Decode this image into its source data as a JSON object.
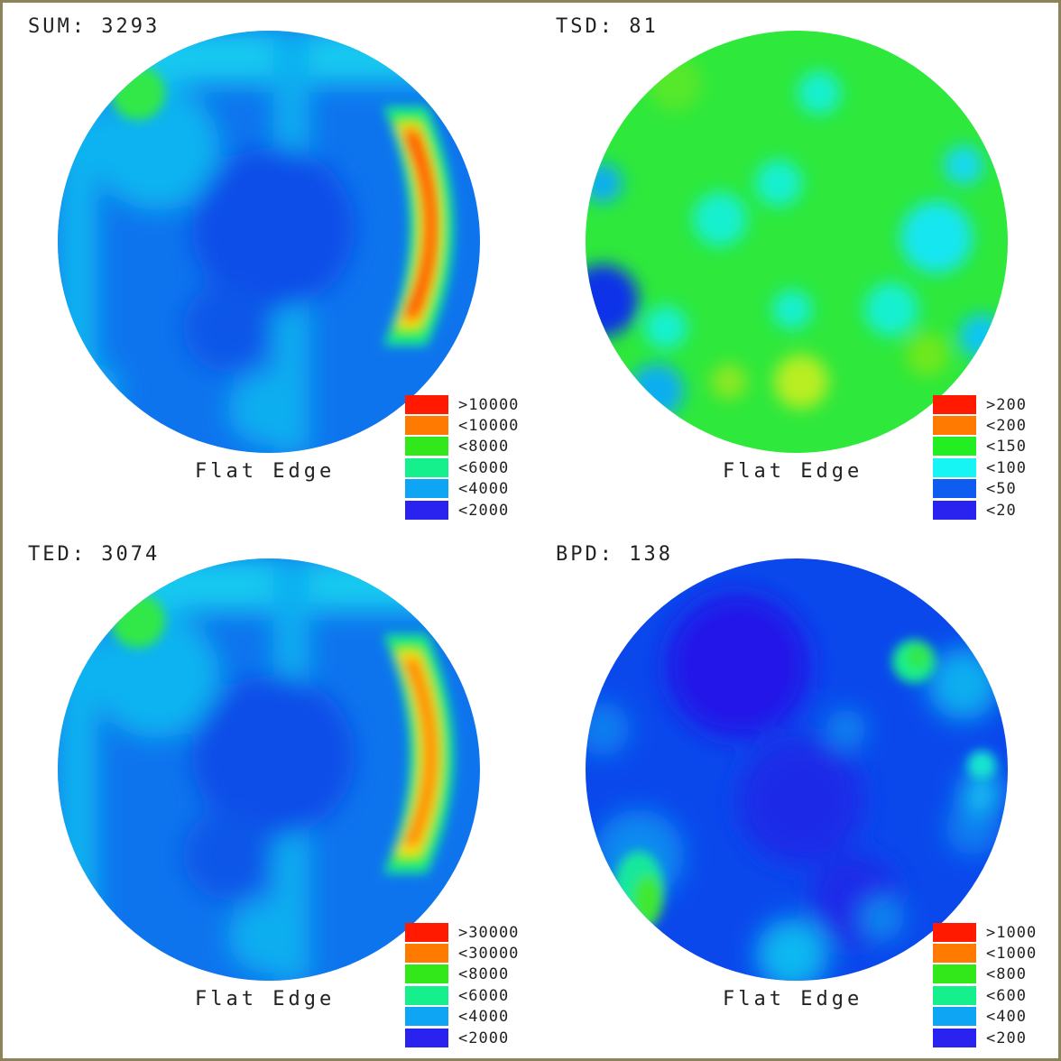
{
  "legend_colors": [
    "#ff1a00",
    "#ff7a00",
    "#33e81a",
    "#16f08c",
    "#0ea6f4",
    "#2a22ee"
  ],
  "chart_data": [
    {
      "type": "heatmap",
      "title": "SUM: 3293",
      "xlabel": "Flat Edge",
      "legend": [
        ">10000",
        "<10000",
        "<8000",
        "<6000",
        "<4000",
        "<2000"
      ],
      "thresholds": [
        10000,
        8000,
        6000,
        4000,
        2000
      ],
      "base": 3000,
      "hotspots": [
        {
          "label": "right-edge ring",
          "cx": 0.85,
          "cy": 0.5,
          "value": 10000
        },
        {
          "label": "upper-left",
          "cx": 0.18,
          "cy": 0.16,
          "value": 6600
        },
        {
          "label": "top",
          "cx": 0.55,
          "cy": 0.04,
          "value": 4500
        }
      ]
    },
    {
      "type": "heatmap",
      "title": "TSD: 81",
      "xlabel": "Flat Edge",
      "legend": [
        ">200",
        "<200",
        "<150",
        "<100",
        "<50",
        "<20"
      ],
      "thresholds": [
        200,
        150,
        100,
        50,
        20
      ],
      "base": 110,
      "hotspots": [
        {
          "label": "bottom-center",
          "cx": 0.5,
          "cy": 0.84,
          "value": 165
        },
        {
          "label": "left-edge",
          "cx": 0.06,
          "cy": 0.68,
          "value": 35
        }
      ]
    },
    {
      "type": "heatmap",
      "title": "TED: 3074",
      "xlabel": "Flat Edge",
      "legend": [
        ">30000",
        "<30000",
        "<8000",
        "<6000",
        "<4000",
        "<2000"
      ],
      "thresholds": [
        30000,
        8000,
        6000,
        4000,
        2000
      ],
      "base": 3000,
      "hotspots": [
        {
          "label": "right-edge ring",
          "cx": 0.85,
          "cy": 0.5,
          "value": 30000
        },
        {
          "label": "upper-left",
          "cx": 0.18,
          "cy": 0.16,
          "value": 6600
        }
      ]
    },
    {
      "type": "heatmap",
      "title": "BPD: 138",
      "xlabel": "Flat Edge",
      "legend": [
        ">1000",
        "<1000",
        "<800",
        "<600",
        "<400",
        "<200"
      ],
      "thresholds": [
        1000,
        800,
        600,
        400,
        200
      ],
      "base": 250,
      "hotspots": [
        {
          "label": "upper-right",
          "cx": 0.78,
          "cy": 0.25,
          "value": 700
        },
        {
          "label": "lower-left edge",
          "cx": 0.12,
          "cy": 0.77,
          "value": 650
        },
        {
          "label": "upper-center low",
          "cx": 0.35,
          "cy": 0.25,
          "value": 150
        }
      ]
    }
  ]
}
